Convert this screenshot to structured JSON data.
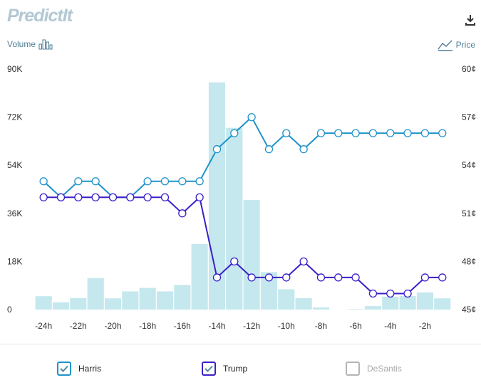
{
  "logo": {
    "text": "PredictIt"
  },
  "volume_label": "Volume",
  "price_label": "Price",
  "colors": {
    "harris": "#1f93c9",
    "trump": "#3a1fc9",
    "desantis": "#b5b5b5",
    "volume_bar": "#c4e8ee"
  },
  "chart_data": {
    "type": "bar+line",
    "x_tick_labels": [
      "-24h",
      "-22h",
      "-20h",
      "-18h",
      "-16h",
      "-14h",
      "-12h",
      "-10h",
      "-8h",
      "-6h",
      "-4h",
      "-2h"
    ],
    "left_axis": {
      "label": "Volume",
      "ticks": [
        "90K",
        "72K",
        "54K",
        "36K",
        "18K",
        "0"
      ],
      "range": [
        0,
        90000
      ]
    },
    "right_axis": {
      "label": "Price",
      "ticks": [
        "60¢",
        "57¢",
        "54¢",
        "51¢",
        "48¢",
        "45¢"
      ],
      "range": [
        45,
        60
      ]
    },
    "hours": [
      -24,
      -23,
      -22,
      -21,
      -20,
      -19,
      -18,
      -17,
      -16,
      -15,
      -14,
      -13,
      -12,
      -11,
      -10,
      -9,
      -8,
      -7,
      -6,
      -5,
      -4,
      -3,
      -2,
      -1
    ],
    "volume": [
      5000,
      2700,
      4300,
      11800,
      4200,
      6800,
      8100,
      6800,
      9200,
      24500,
      85000,
      68000,
      41000,
      14000,
      7600,
      4300,
      800,
      0,
      200,
      1300,
      4800,
      5100,
      6400,
      4200
    ],
    "series": [
      {
        "name": "Harris",
        "values": [
          53,
          52,
          53,
          53,
          52,
          52,
          53,
          53,
          53,
          53,
          55,
          56,
          57,
          55,
          56,
          55,
          56,
          56,
          56,
          56,
          56,
          56,
          56,
          56
        ]
      },
      {
        "name": "Trump",
        "values": [
          52,
          52,
          52,
          52,
          52,
          52,
          52,
          52,
          51,
          52,
          47,
          48,
          47,
          47,
          47,
          48,
          47,
          47,
          47,
          46,
          46,
          46,
          47,
          47
        ]
      }
    ]
  },
  "legend": [
    {
      "label": "Harris",
      "checked": true
    },
    {
      "label": "Trump",
      "checked": true
    },
    {
      "label": "DeSantis",
      "checked": false
    }
  ]
}
